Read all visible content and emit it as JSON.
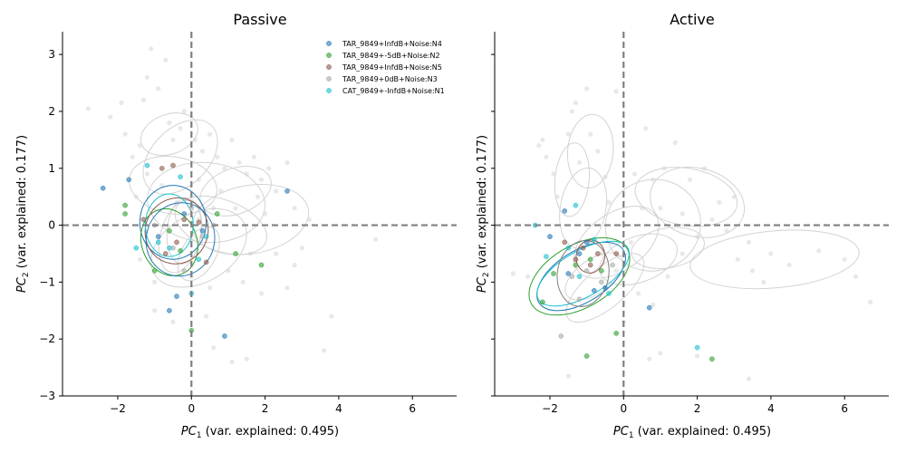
{
  "chart_data": [
    {
      "type": "scatter",
      "title": "Passive",
      "xlabel_var": "PC",
      "xlabel_sub": "1",
      "xlabel_rest": " (var. explained: 0.495)",
      "ylabel_var": "PC",
      "ylabel_sub": "2",
      "ylabel_rest": " (var. explained: 0.177)",
      "xlim": [
        -3.5,
        7.2
      ],
      "ylim": [
        -3.0,
        3.4
      ],
      "xticks": [
        -2,
        0,
        2,
        4,
        6
      ],
      "yticks": [
        -3,
        -2,
        -1,
        0,
        1,
        2,
        3
      ],
      "xtick_labels": [
        "−2",
        "0",
        "2",
        "4",
        "6"
      ],
      "ytick_labels": [
        "−3",
        "−2",
        "−1",
        "0",
        "1",
        "2",
        "3"
      ],
      "grid": false,
      "legend_position": "top-right",
      "reference_lines": {
        "x": 0,
        "y": 0,
        "color": "#808080",
        "style": "dashed"
      },
      "background_points": [
        [
          -2.8,
          2.05
        ],
        [
          -2.2,
          1.9
        ],
        [
          -1.9,
          2.15
        ],
        [
          -1.8,
          1.6
        ],
        [
          -1.6,
          1.2
        ],
        [
          -1.5,
          0.5
        ],
        [
          -1.4,
          1.4
        ],
        [
          -1.3,
          2.2
        ],
        [
          -1.2,
          2.6
        ],
        [
          -1.1,
          3.1
        ],
        [
          -0.9,
          2.4
        ],
        [
          -0.7,
          2.9
        ],
        [
          -0.6,
          1.8
        ],
        [
          -0.5,
          1.5
        ],
        [
          -0.3,
          1.7
        ],
        [
          -0.2,
          2.0
        ],
        [
          0.1,
          1.5
        ],
        [
          0.3,
          1.3
        ],
        [
          0.5,
          1.6
        ],
        [
          0.7,
          1.2
        ],
        [
          0.9,
          1.0
        ],
        [
          1.1,
          1.5
        ],
        [
          1.3,
          1.1
        ],
        [
          1.5,
          0.9
        ],
        [
          1.7,
          1.2
        ],
        [
          1.9,
          0.8
        ],
        [
          2.1,
          1.0
        ],
        [
          2.3,
          0.6
        ],
        [
          2.6,
          1.1
        ],
        [
          2.8,
          0.3
        ],
        [
          3.0,
          -0.4
        ],
        [
          3.2,
          0.1
        ],
        [
          3.6,
          -2.2
        ],
        [
          3.8,
          -1.6
        ],
        [
          5.0,
          -0.25
        ],
        [
          -1.0,
          -1.5
        ],
        [
          -0.5,
          -1.7
        ],
        [
          0.4,
          -1.6
        ],
        [
          0.6,
          -2.15
        ],
        [
          1.1,
          -2.4
        ],
        [
          1.5,
          -2.35
        ],
        [
          1.9,
          -1.2
        ],
        [
          2.3,
          -0.5
        ],
        [
          2.6,
          -1.1
        ],
        [
          2.8,
          -0.7
        ],
        [
          -1.2,
          0.9
        ],
        [
          -0.8,
          0.7
        ],
        [
          -0.4,
          0.4
        ],
        [
          0.2,
          0.8
        ],
        [
          0.8,
          0.6
        ],
        [
          1.2,
          0.3
        ],
        [
          1.6,
          -0.5
        ],
        [
          2.0,
          0.2
        ],
        [
          0.0,
          -0.9
        ],
        [
          0.5,
          -1.1
        ],
        [
          1.0,
          -0.8
        ],
        [
          1.4,
          -1.0
        ],
        [
          -1.4,
          -0.6
        ],
        [
          -1.0,
          -1.0
        ],
        [
          0.2,
          0.1
        ],
        [
          0.6,
          0.3
        ],
        [
          1.8,
          0.5
        ]
      ],
      "ellipses": [
        {
          "cx": -0.3,
          "cy": 1.2,
          "rx": 1.2,
          "ry": 0.5,
          "rot": -45,
          "color": "#d3d3d3"
        },
        {
          "cx": -0.6,
          "cy": 1.6,
          "rx": 0.8,
          "ry": 0.35,
          "rot": -20,
          "color": "#d3d3d3"
        },
        {
          "cx": -0.5,
          "cy": 0.7,
          "rx": 1.2,
          "ry": 0.5,
          "rot": 10,
          "color": "#d3d3d3"
        },
        {
          "cx": 0.4,
          "cy": 0.4,
          "rx": 1.6,
          "ry": 0.7,
          "rot": 5,
          "color": "#d3d3d3"
        },
        {
          "cx": 1.6,
          "cy": 0.1,
          "rx": 1.6,
          "ry": 0.6,
          "rot": -10,
          "color": "#d3d3d3"
        },
        {
          "cx": 0.2,
          "cy": -0.4,
          "rx": 1.4,
          "ry": 0.6,
          "rot": -30,
          "color": "#d3d3d3"
        },
        {
          "cx": 0.2,
          "cy": -0.5,
          "rx": 0.8,
          "ry": 0.3,
          "rot": -60,
          "color": "#d3d3d3"
        },
        {
          "cx": 1.2,
          "cy": 0.6,
          "rx": 1.0,
          "ry": 0.4,
          "rot": -20,
          "color": "#d3d3d3"
        },
        {
          "cx": -0.3,
          "cy": -0.2,
          "rx": 1.0,
          "ry": 0.35,
          "rot": -75,
          "color": "#d3d3d3"
        },
        {
          "cx": 0.8,
          "cy": 0.0,
          "rx": 1.3,
          "ry": 0.45,
          "rot": 20,
          "color": "#d3d3d3"
        },
        {
          "cx": -0.2,
          "cy": -0.1,
          "rx": 0.9,
          "ry": 0.3,
          "rot": -85,
          "color": "#d3d3d3"
        },
        {
          "cx": -0.5,
          "cy": 0.05,
          "rx": 0.9,
          "ry": 0.65,
          "rot": 0,
          "color": "#1f77b4"
        },
        {
          "cx": -0.6,
          "cy": -0.3,
          "rx": 0.75,
          "ry": 0.6,
          "rot": -20,
          "color": "#2ca02c"
        },
        {
          "cx": -0.4,
          "cy": -0.1,
          "rx": 0.9,
          "ry": 0.55,
          "rot": -70,
          "color": "#8c564b"
        },
        {
          "cx": -0.6,
          "cy": 0.0,
          "rx": 0.65,
          "ry": 0.55,
          "rot": 0,
          "color": "#17becf"
        },
        {
          "cx": -0.3,
          "cy": -0.25,
          "rx": 1.0,
          "ry": 0.6,
          "rot": -75,
          "color": "#1f77b4"
        }
      ],
      "series": [
        {
          "name": "TAR_9849+InfdB+Noise:N4",
          "color": "#1f77b4",
          "points": [
            [
              -2.4,
              0.65
            ],
            [
              -1.7,
              0.8
            ],
            [
              -0.9,
              -0.2
            ],
            [
              -0.6,
              -1.5
            ],
            [
              -0.4,
              -1.25
            ],
            [
              0.3,
              -0.1
            ],
            [
              0.9,
              -1.95
            ],
            [
              2.6,
              0.6
            ],
            [
              -0.2,
              0.2
            ]
          ]
        },
        {
          "name": "TAR_9849+-5dB+Noise:N2",
          "color": "#2ca02c",
          "points": [
            [
              -1.8,
              0.35
            ],
            [
              -1.8,
              0.2
            ],
            [
              -1.0,
              -0.8
            ],
            [
              -0.3,
              -0.45
            ],
            [
              0.0,
              -1.85
            ],
            [
              0.7,
              0.2
            ],
            [
              1.2,
              -0.5
            ],
            [
              1.9,
              -0.7
            ],
            [
              -0.6,
              -0.1
            ]
          ]
        },
        {
          "name": "TAR_9849+InfdB+Noise:N5",
          "color": "#8c564b",
          "points": [
            [
              -0.8,
              1.0
            ],
            [
              -0.5,
              1.05
            ],
            [
              -1.3,
              0.1
            ],
            [
              -0.4,
              -0.3
            ],
            [
              -0.2,
              0.1
            ],
            [
              0.2,
              0.05
            ],
            [
              0.4,
              -0.65
            ],
            [
              -0.7,
              -0.5
            ]
          ]
        },
        {
          "name": "TAR_9849+0dB+Noise:N3",
          "color": "#a9a9a9",
          "points": [
            [
              -1.0,
              0.0
            ],
            [
              -0.5,
              -0.4
            ],
            [
              0.0,
              0.3
            ],
            [
              0.3,
              -0.2
            ],
            [
              -0.2,
              -0.8
            ],
            [
              0.6,
              0.0
            ]
          ]
        },
        {
          "name": "CAT_9849+-InfdB+Noise:N1",
          "color": "#17becf",
          "points": [
            [
              -1.2,
              1.05
            ],
            [
              -0.3,
              0.85
            ],
            [
              -1.5,
              -0.4
            ],
            [
              -0.6,
              -0.4
            ],
            [
              0.0,
              -1.2
            ],
            [
              0.4,
              -0.2
            ],
            [
              -0.9,
              -0.3
            ],
            [
              0.2,
              -0.6
            ]
          ]
        }
      ]
    },
    {
      "type": "scatter",
      "title": "Active",
      "xlabel_var": "PC",
      "xlabel_sub": "1",
      "xlabel_rest": " (var. explained: 0.495)",
      "ylabel_var": "PC",
      "ylabel_sub": "2",
      "ylabel_rest": " (var. explained: 0.177)",
      "xlim": [
        -3.5,
        7.2
      ],
      "ylim": [
        -3.0,
        3.4
      ],
      "xticks": [
        -2,
        0,
        2,
        4,
        6
      ],
      "yticks": [
        -3,
        -2,
        -1,
        0,
        1,
        2,
        3
      ],
      "xtick_labels": [
        "−2",
        "0",
        "2",
        "4",
        "6"
      ],
      "ytick_labels": [
        "−3",
        "−2",
        "−1",
        "0",
        "1",
        "2",
        "3"
      ],
      "grid": false,
      "reference_lines": {
        "x": 0,
        "y": 0,
        "color": "#808080",
        "style": "dashed"
      },
      "background_points": [
        [
          -3.0,
          -0.85
        ],
        [
          -2.6,
          -0.9
        ],
        [
          -2.2,
          1.5
        ],
        [
          -2.1,
          1.2
        ],
        [
          -1.8,
          0.5
        ],
        [
          -1.5,
          1.6
        ],
        [
          -1.4,
          2.0
        ],
        [
          -1.3,
          2.15
        ],
        [
          -1.2,
          1.1
        ],
        [
          -1.0,
          2.4
        ],
        [
          -0.9,
          1.6
        ],
        [
          -0.7,
          1.3
        ],
        [
          -0.5,
          0.85
        ],
        [
          -0.4,
          0.4
        ],
        [
          -0.2,
          2.35
        ],
        [
          0.3,
          0.9
        ],
        [
          0.6,
          1.7
        ],
        [
          0.8,
          0.8
        ],
        [
          1.1,
          1.0
        ],
        [
          1.4,
          1.45
        ],
        [
          1.6,
          0.2
        ],
        [
          1.8,
          0.8
        ],
        [
          2.2,
          1.0
        ],
        [
          2.6,
          0.4
        ],
        [
          3.0,
          0.5
        ],
        [
          3.1,
          -0.6
        ],
        [
          3.4,
          -0.3
        ],
        [
          3.5,
          -0.8
        ],
        [
          3.8,
          -1.0
        ],
        [
          4.0,
          -0.5
        ],
        [
          4.5,
          -0.7
        ],
        [
          5.3,
          -0.45
        ],
        [
          6.0,
          -0.6
        ],
        [
          6.3,
          -0.9
        ],
        [
          6.7,
          -1.35
        ],
        [
          3.4,
          -2.7
        ],
        [
          2.0,
          -2.3
        ],
        [
          1.0,
          -2.25
        ],
        [
          0.7,
          -2.35
        ],
        [
          -1.5,
          -2.65
        ],
        [
          0.0,
          -1.7
        ],
        [
          0.4,
          -1.2
        ],
        [
          0.8,
          -1.4
        ],
        [
          1.2,
          -0.9
        ],
        [
          1.6,
          -0.5
        ],
        [
          2.0,
          -0.2
        ],
        [
          -0.2,
          -0.8
        ],
        [
          0.2,
          -0.3
        ],
        [
          1.0,
          0.3
        ],
        [
          2.4,
          0.1
        ],
        [
          2.8,
          -0.1
        ],
        [
          -2.3,
          1.4
        ],
        [
          -1.9,
          0.9
        ],
        [
          -0.6,
          -0.5
        ],
        [
          0.5,
          0.3
        ]
      ],
      "ellipses": [
        {
          "cx": -1.4,
          "cy": 0.8,
          "rx": 1.0,
          "ry": 0.3,
          "rot": -85,
          "color": "#d3d3d3"
        },
        {
          "cx": -0.9,
          "cy": 1.3,
          "rx": 1.0,
          "ry": 0.4,
          "rot": -85,
          "color": "#d3d3d3"
        },
        {
          "cx": -1.1,
          "cy": 0.3,
          "rx": 1.1,
          "ry": 0.4,
          "rot": -80,
          "color": "#d3d3d3"
        },
        {
          "cx": -0.2,
          "cy": -0.3,
          "rx": 1.3,
          "ry": 0.5,
          "rot": -35,
          "color": "#d3d3d3"
        },
        {
          "cx": 0.8,
          "cy": 0.0,
          "rx": 1.3,
          "ry": 0.8,
          "rot": -20,
          "color": "#d3d3d3"
        },
        {
          "cx": 1.7,
          "cy": 0.5,
          "rx": 1.4,
          "ry": 0.5,
          "rot": 10,
          "color": "#d3d3d3"
        },
        {
          "cx": 2.0,
          "cy": 0.4,
          "rx": 1.3,
          "ry": 0.6,
          "rot": 15,
          "color": "#d3d3d3"
        },
        {
          "cx": 4.1,
          "cy": -0.6,
          "rx": 2.3,
          "ry": 0.5,
          "rot": -5,
          "color": "#d3d3d3"
        },
        {
          "cx": 0.4,
          "cy": -0.6,
          "rx": 1.1,
          "ry": 0.4,
          "rot": -20,
          "color": "#d3d3d3"
        },
        {
          "cx": -0.8,
          "cy": -0.9,
          "rx": 0.9,
          "ry": 0.3,
          "rot": -35,
          "color": "#d3d3d3"
        },
        {
          "cx": 1.2,
          "cy": -0.4,
          "rx": 1.0,
          "ry": 0.35,
          "rot": -10,
          "color": "#d3d3d3"
        },
        {
          "cx": -0.5,
          "cy": -1.1,
          "rx": 1.3,
          "ry": 0.35,
          "rot": -40,
          "color": "#d3d3d3"
        },
        {
          "cx": -1.2,
          "cy": -0.9,
          "rx": 1.5,
          "ry": 0.55,
          "rot": -30,
          "color": "#2ca02c"
        },
        {
          "cx": -1.15,
          "cy": -0.9,
          "rx": 1.35,
          "ry": 0.45,
          "rot": -32,
          "color": "#1f77b4"
        },
        {
          "cx": -1.1,
          "cy": -0.85,
          "rx": 1.4,
          "ry": 0.4,
          "rot": -30,
          "color": "#17becf"
        },
        {
          "cx": -1.1,
          "cy": -0.85,
          "rx": 0.9,
          "ry": 0.45,
          "rot": -80,
          "color": "#808080"
        },
        {
          "cx": -0.9,
          "cy": -0.55,
          "rx": 0.45,
          "ry": 0.25,
          "rot": -80,
          "color": "#8c564b"
        }
      ],
      "series": [
        {
          "name": "TAR_9849+InfdB+Noise:N4",
          "color": "#1f77b4",
          "points": [
            [
              -2.0,
              -0.2
            ],
            [
              -1.6,
              0.25
            ],
            [
              -1.5,
              -0.85
            ],
            [
              -1.0,
              -0.3
            ],
            [
              -0.8,
              -1.15
            ],
            [
              -0.5,
              -1.1
            ],
            [
              0.7,
              -1.45
            ],
            [
              -1.2,
              -0.5
            ]
          ]
        },
        {
          "name": "TAR_9849+-5dB+Noise:N2",
          "color": "#2ca02c",
          "points": [
            [
              -2.2,
              -1.35
            ],
            [
              -1.9,
              -0.85
            ],
            [
              -1.3,
              -0.7
            ],
            [
              -1.0,
              -2.3
            ],
            [
              -0.9,
              -0.6
            ],
            [
              -0.2,
              -1.9
            ],
            [
              2.4,
              -2.35
            ],
            [
              -0.6,
              -0.8
            ]
          ]
        },
        {
          "name": "TAR_9849+InfdB+Noise:N5",
          "color": "#8c564b",
          "points": [
            [
              -1.6,
              -0.3
            ],
            [
              -1.1,
              -0.4
            ],
            [
              -0.9,
              -0.7
            ],
            [
              -0.2,
              -0.5
            ],
            [
              -1.3,
              -0.6
            ],
            [
              -0.7,
              -0.5
            ]
          ]
        },
        {
          "name": "TAR_9849+0dB+Noise:N3",
          "color": "#a9a9a9",
          "points": [
            [
              -1.7,
              -1.95
            ],
            [
              -1.4,
              -0.9
            ],
            [
              -1.0,
              -0.8
            ],
            [
              -0.6,
              -1.0
            ],
            [
              -0.3,
              -0.7
            ],
            [
              -1.2,
              -1.3
            ]
          ]
        },
        {
          "name": "CAT_9849+-InfdB+Noise:N1",
          "color": "#17becf",
          "points": [
            [
              -2.4,
              0.0
            ],
            [
              -2.1,
              -0.55
            ],
            [
              -1.3,
              0.35
            ],
            [
              -1.2,
              -0.9
            ],
            [
              -0.8,
              -0.25
            ],
            [
              2.0,
              -2.15
            ],
            [
              -1.5,
              -0.4
            ],
            [
              -0.4,
              -1.2
            ]
          ]
        }
      ]
    }
  ]
}
